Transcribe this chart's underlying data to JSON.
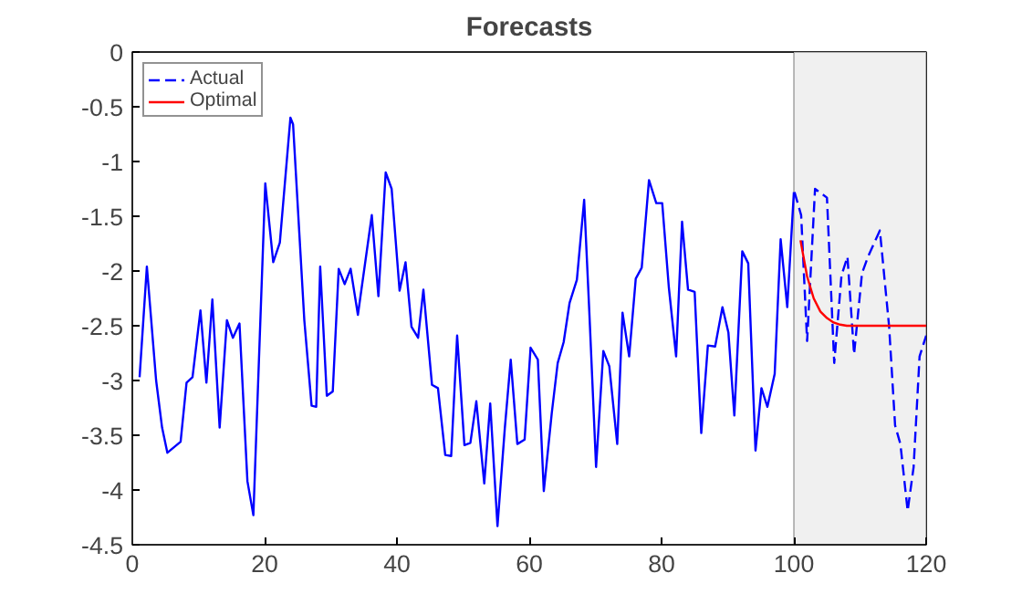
{
  "chart_data": {
    "type": "line",
    "title": "Forecasts",
    "xlim": [
      0,
      120
    ],
    "xticks": [
      0,
      20,
      40,
      60,
      80,
      100,
      120
    ],
    "ylim": [
      -4.5,
      0
    ],
    "yticks": [
      -4.5,
      -4,
      -3.5,
      -3,
      -2.5,
      -2,
      -1.5,
      -1,
      -0.5,
      0
    ],
    "grid": false,
    "legend": "top left",
    "marker": "none",
    "bands": [
      {
        "axis": "x",
        "from": 100,
        "to": 120,
        "color": "#f0f0f0"
      }
    ],
    "series": [
      {
        "color": "#0000ff",
        "line_style": "solid",
        "x": [
          1.1,
          2.2,
          3.6,
          4.5,
          5.3,
          7.3,
          8.2,
          9.1,
          10.3,
          11.2,
          12.1,
          13.2,
          14.3,
          15.2,
          16.2,
          17.4,
          18.3,
          20.1,
          21.3,
          22.3,
          23.9,
          24.3,
          26.0,
          27.1,
          27.8,
          28.4,
          29.4,
          30.3,
          31.2,
          32.1,
          33.0,
          34.1,
          36.2,
          37.2,
          38.3,
          39.2,
          40.4,
          41.3,
          42.2,
          43.2,
          44.0,
          45.3,
          46.2,
          47.3,
          48.2,
          49.1,
          50.2,
          51.1,
          52.0,
          53.2,
          54.1,
          55.2,
          56.3,
          57.2,
          58.2,
          59.3,
          60.2,
          61.3,
          62.2,
          63.4,
          64.3,
          65.2,
          66.1,
          67.2,
          68.3,
          69.1,
          70.1,
          71.2,
          72.1,
          73.3,
          74.1,
          75.1,
          76.1,
          77.0,
          78.1,
          79.2,
          80.1,
          81.1,
          82.2,
          83.1,
          84.0,
          85.0,
          86.0,
          87.0,
          88.1,
          89.2,
          90.1,
          91.0,
          92.2,
          93.1,
          94.2,
          95.1,
          96.0,
          97.1,
          98.0,
          99.0,
          100.0
        ],
        "values": [
          -2.97,
          -1.96,
          -3.0,
          -3.43,
          -3.66,
          -3.56,
          -3.02,
          -2.97,
          -2.36,
          -3.02,
          -2.26,
          -3.43,
          -2.45,
          -2.61,
          -2.48,
          -3.92,
          -4.23,
          -1.2,
          -1.92,
          -1.74,
          -0.6,
          -0.66,
          -2.45,
          -3.23,
          -3.24,
          -1.96,
          -3.14,
          -3.1,
          -1.98,
          -2.12,
          -1.98,
          -2.4,
          -1.49,
          -2.23,
          -1.1,
          -1.25,
          -2.18,
          -1.92,
          -2.51,
          -2.61,
          -2.17,
          -3.04,
          -3.07,
          -3.68,
          -3.69,
          -2.59,
          -3.59,
          -3.57,
          -3.19,
          -3.94,
          -3.21,
          -4.33,
          -3.44,
          -2.81,
          -3.58,
          -3.54,
          -2.7,
          -2.81,
          -4.01,
          -3.3,
          -2.84,
          -2.65,
          -2.29,
          -2.08,
          -1.35,
          -2.4,
          -3.79,
          -2.73,
          -2.87,
          -3.58,
          -2.38,
          -2.78,
          -2.07,
          -1.97,
          -1.17,
          -1.38,
          -1.38,
          -2.15,
          -2.78,
          -1.55,
          -2.17,
          -2.19,
          -3.48,
          -2.68,
          -2.69,
          -2.33,
          -2.56,
          -3.32,
          -1.82,
          -1.93,
          -3.64,
          -3.07,
          -3.24,
          -2.94,
          -1.71,
          -2.33,
          -1.28
        ]
      },
      {
        "name": "Actual",
        "color": "#0000ff",
        "line_style": "dashed",
        "x": [
          100.1,
          101.1,
          102.0,
          103.2,
          105.0,
          106.1,
          107.2,
          108.1,
          109.1,
          110.3,
          111.2,
          113.0,
          114.4,
          115.3,
          116.1,
          117.2,
          118.1,
          119.0,
          120.0
        ],
        "values": [
          -1.28,
          -1.49,
          -2.64,
          -1.25,
          -1.33,
          -2.84,
          -2.04,
          -1.87,
          -2.76,
          -2.02,
          -1.87,
          -1.63,
          -2.51,
          -3.41,
          -3.58,
          -4.19,
          -3.79,
          -2.78,
          -2.59
        ]
      },
      {
        "name": "Optimal",
        "color": "#ff0000",
        "line_style": "solid",
        "x": [
          101,
          102,
          103,
          104,
          105,
          106,
          107,
          108,
          110,
          120
        ],
        "values": [
          -1.72,
          -2.05,
          -2.25,
          -2.37,
          -2.43,
          -2.47,
          -2.49,
          -2.5,
          -2.5,
          -2.5
        ]
      }
    ]
  }
}
